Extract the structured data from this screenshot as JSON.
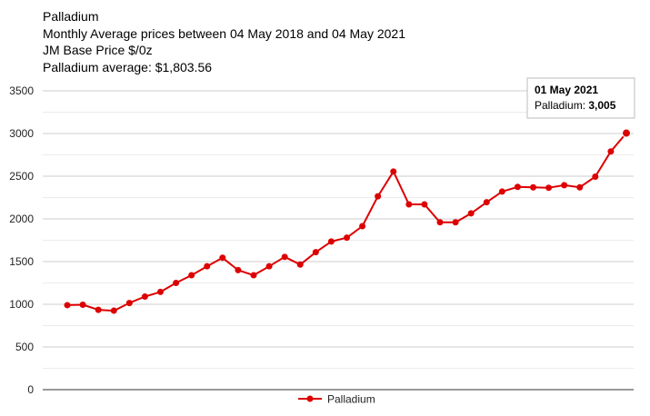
{
  "header": {
    "title": "Palladium",
    "subtitle": "Monthly Average prices between 04 May 2018 and 04 May 2021",
    "unit_line": "JM Base Price $/0z",
    "average_line": "Palladium average: $1,803.56"
  },
  "tooltip": {
    "date": "01 May 2021",
    "series_label": "Palladium: ",
    "value_text": "3,005"
  },
  "chart_data": {
    "type": "line",
    "series": [
      {
        "name": "Palladium",
        "color": "#dd0000",
        "values": [
          990,
          995,
          935,
          925,
          1015,
          1090,
          1145,
          1250,
          1340,
          1445,
          1545,
          1400,
          1340,
          1445,
          1555,
          1465,
          1610,
          1735,
          1780,
          1915,
          2265,
          2555,
          2170,
          2170,
          1960,
          1960,
          2065,
          2195,
          2320,
          2375,
          2370,
          2365,
          2395,
          2370,
          2495,
          2790,
          3005
        ]
      }
    ],
    "yticks": [
      "0",
      "500",
      "1000",
      "1500",
      "2000",
      "2500",
      "3000",
      "3500"
    ],
    "ylim": [
      0,
      3500
    ],
    "grid": true,
    "legend_position": "bottom"
  }
}
